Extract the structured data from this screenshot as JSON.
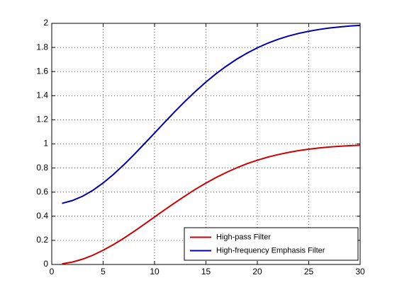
{
  "chart_data": {
    "type": "line",
    "x": [
      1,
      2,
      3,
      4,
      5,
      6,
      7,
      8,
      9,
      10,
      11,
      12,
      13,
      14,
      15,
      16,
      17,
      18,
      19,
      20,
      21,
      22,
      23,
      24,
      25,
      26,
      27,
      28,
      29,
      30
    ],
    "series": [
      {
        "name": "High-pass Filter",
        "color": "#cc0000",
        "values": [
          0.005,
          0.02,
          0.044,
          0.077,
          0.118,
          0.165,
          0.217,
          0.274,
          0.333,
          0.394,
          0.454,
          0.513,
          0.57,
          0.625,
          0.675,
          0.722,
          0.764,
          0.802,
          0.836,
          0.865,
          0.89,
          0.911,
          0.929,
          0.944,
          0.956,
          0.966,
          0.974,
          0.98,
          0.985,
          0.989
        ]
      },
      {
        "name": "High-frequency Emphasis Filter",
        "color": "#0000aa",
        "values": [
          0.507,
          0.53,
          0.566,
          0.615,
          0.676,
          0.747,
          0.826,
          0.911,
          1.0,
          1.09,
          1.181,
          1.27,
          1.356,
          1.437,
          1.513,
          1.583,
          1.646,
          1.703,
          1.753,
          1.797,
          1.835,
          1.867,
          1.894,
          1.916,
          1.934,
          1.949,
          1.961,
          1.97,
          1.978,
          1.983
        ]
      }
    ],
    "xlim": [
      0,
      30
    ],
    "xticks": [
      0,
      5,
      10,
      15,
      20,
      25,
      30
    ],
    "ylim": [
      0,
      2
    ],
    "yticks": [
      0,
      0.2,
      0.4,
      0.6,
      0.8,
      1,
      1.2,
      1.4,
      1.6,
      1.8,
      2
    ],
    "grid": true,
    "legend": "lower right"
  }
}
